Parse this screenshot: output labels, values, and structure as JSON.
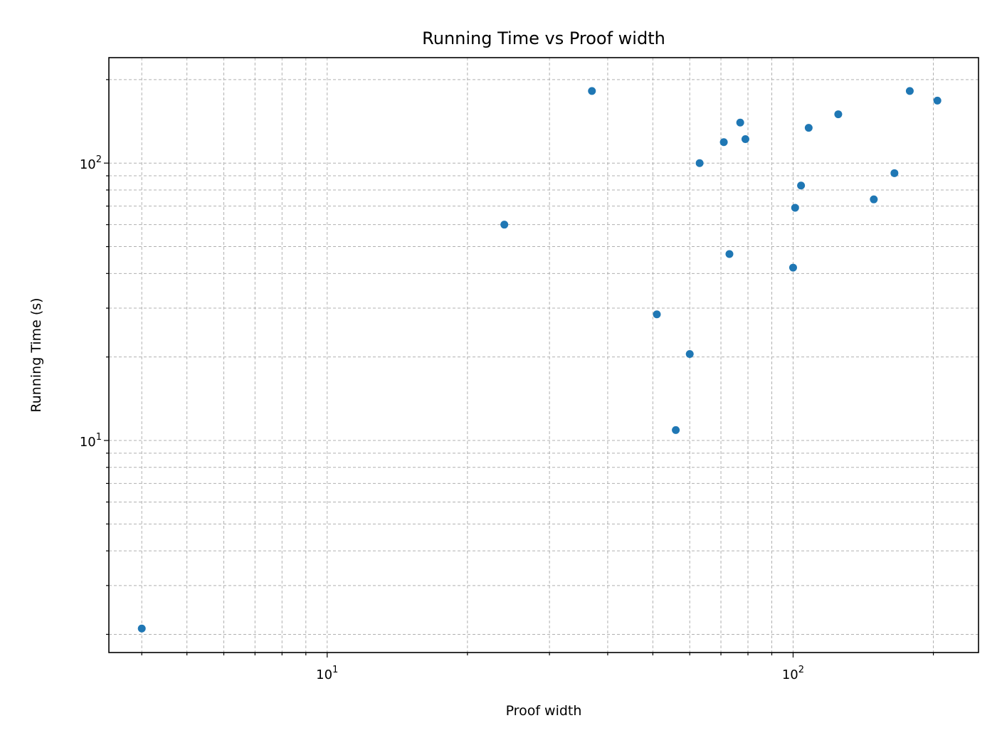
{
  "chart_data": {
    "type": "scatter",
    "title": "Running Time vs Proof width",
    "xlabel": "Proof width",
    "ylabel": "Running Time (s)",
    "xscale": "log",
    "yscale": "log",
    "xlim": [
      3.4,
      250
    ],
    "ylim": [
      1.72,
      240
    ],
    "grid": true,
    "grid_which": "both",
    "marker_color": "#1f77b4",
    "x_tick_labels": [
      {
        "value": 10,
        "base": "10",
        "exp": "1"
      },
      {
        "value": 100,
        "base": "10",
        "exp": "2"
      }
    ],
    "y_tick_labels": [
      {
        "value": 10,
        "base": "10",
        "exp": "1"
      },
      {
        "value": 100,
        "base": "10",
        "exp": "2"
      }
    ],
    "points": [
      {
        "x": 4,
        "y": 2.1
      },
      {
        "x": 24,
        "y": 60
      },
      {
        "x": 37,
        "y": 182
      },
      {
        "x": 51,
        "y": 28.5
      },
      {
        "x": 56,
        "y": 10.9
      },
      {
        "x": 60,
        "y": 20.5
      },
      {
        "x": 63,
        "y": 100
      },
      {
        "x": 71,
        "y": 119
      },
      {
        "x": 73,
        "y": 47
      },
      {
        "x": 77,
        "y": 140
      },
      {
        "x": 79,
        "y": 122
      },
      {
        "x": 100,
        "y": 42
      },
      {
        "x": 101,
        "y": 69
      },
      {
        "x": 104,
        "y": 83
      },
      {
        "x": 108,
        "y": 134
      },
      {
        "x": 125,
        "y": 150
      },
      {
        "x": 149,
        "y": 74
      },
      {
        "x": 165,
        "y": 92
      },
      {
        "x": 178,
        "y": 182
      },
      {
        "x": 204,
        "y": 168
      }
    ]
  }
}
